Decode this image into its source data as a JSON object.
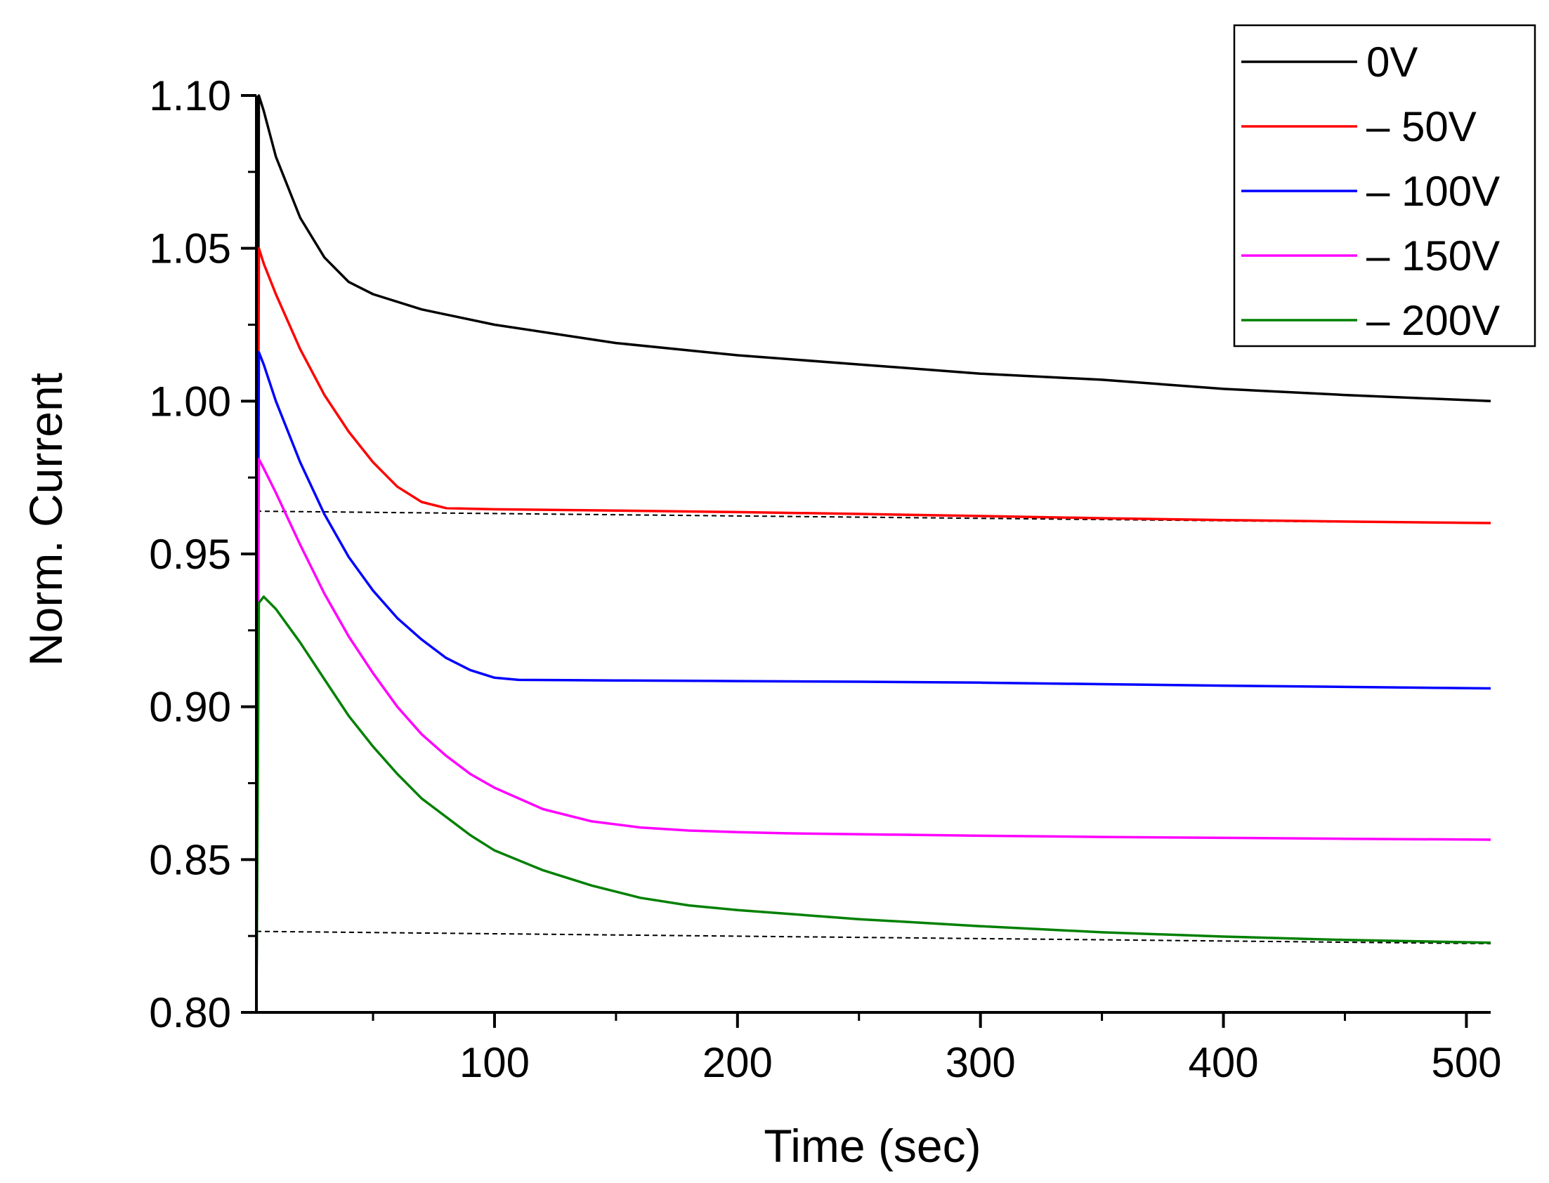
{
  "chart_data": {
    "type": "line",
    "title": "",
    "xlabel": "Time (sec)",
    "ylabel": "Norm. Current",
    "xlim": [
      2,
      510
    ],
    "ylim": [
      0.8,
      1.1
    ],
    "xticks": [
      100,
      200,
      300,
      400,
      500
    ],
    "xtick_labels": [
      "100",
      "200",
      "300",
      "400",
      "500"
    ],
    "yticks": [
      0.8,
      0.85,
      0.9,
      0.95,
      1.0,
      1.05,
      1.1
    ],
    "ytick_labels": [
      "0.80",
      "0.85",
      "0.90",
      "0.95",
      "1.00",
      "1.05",
      "1.10"
    ],
    "grid": false,
    "legend_position": "top-right",
    "series": [
      {
        "name": "0V",
        "color": "#000000",
        "x": [
          2,
          3,
          5,
          10,
          20,
          30,
          40,
          50,
          70,
          100,
          150,
          200,
          250,
          300,
          350,
          400,
          450,
          510
        ],
        "y": [
          0.8,
          1.1,
          1.095,
          1.08,
          1.06,
          1.047,
          1.039,
          1.035,
          1.03,
          1.025,
          1.019,
          1.015,
          1.012,
          1.009,
          1.007,
          1.004,
          1.002,
          1.0
        ]
      },
      {
        "name": "– 50V",
        "color": "#ff0000",
        "x": [
          2,
          3,
          5,
          10,
          20,
          30,
          40,
          50,
          60,
          70,
          80,
          90,
          100,
          150,
          200,
          250,
          300,
          350,
          400,
          450,
          510
        ],
        "y": [
          0.8,
          1.05,
          1.045,
          1.035,
          1.017,
          1.002,
          0.99,
          0.98,
          0.972,
          0.967,
          0.965,
          0.9648,
          0.9646,
          0.9642,
          0.9637,
          0.9631,
          0.9624,
          0.9617,
          0.9611,
          0.9606,
          0.9601
        ]
      },
      {
        "name": "– 100V",
        "color": "#0000ff",
        "x": [
          2,
          3,
          5,
          10,
          20,
          30,
          40,
          50,
          60,
          70,
          80,
          90,
          100,
          110,
          130,
          150,
          200,
          250,
          300,
          350,
          400,
          450,
          510
        ],
        "y": [
          0.8,
          1.016,
          1.012,
          1.0,
          0.98,
          0.963,
          0.949,
          0.938,
          0.929,
          0.922,
          0.916,
          0.912,
          0.9095,
          0.9088,
          0.9087,
          0.9086,
          0.9084,
          0.9082,
          0.9079,
          0.9074,
          0.9069,
          0.9065,
          0.906
        ]
      },
      {
        "name": "– 150V",
        "color": "#ff00ff",
        "x": [
          2,
          3,
          5,
          10,
          20,
          30,
          40,
          50,
          60,
          70,
          80,
          90,
          100,
          120,
          140,
          160,
          180,
          200,
          220,
          250,
          300,
          350,
          400,
          450,
          510
        ],
        "y": [
          0.8,
          0.981,
          0.978,
          0.97,
          0.953,
          0.937,
          0.923,
          0.911,
          0.9,
          0.891,
          0.884,
          0.878,
          0.8735,
          0.8665,
          0.8625,
          0.8605,
          0.8595,
          0.859,
          0.8586,
          0.8583,
          0.8578,
          0.8574,
          0.8571,
          0.8568,
          0.8565
        ]
      },
      {
        "name": "– 200V",
        "color": "#008000",
        "x": [
          2,
          3,
          5,
          10,
          20,
          30,
          40,
          50,
          60,
          70,
          80,
          90,
          100,
          120,
          140,
          160,
          180,
          200,
          250,
          300,
          350,
          400,
          450,
          510
        ],
        "y": [
          0.8,
          0.934,
          0.936,
          0.932,
          0.921,
          0.909,
          0.897,
          0.887,
          0.878,
          0.87,
          0.864,
          0.858,
          0.853,
          0.8465,
          0.8415,
          0.8375,
          0.835,
          0.8335,
          0.8305,
          0.8282,
          0.8262,
          0.8248,
          0.8237,
          0.8228
        ]
      }
    ],
    "reference_lines": [
      {
        "style": "dashed",
        "color": "#000000",
        "x": [
          2,
          510
        ],
        "y": [
          0.964,
          0.96
        ]
      },
      {
        "style": "dashed",
        "color": "#000000",
        "x": [
          2,
          510
        ],
        "y": [
          0.8265,
          0.8225
        ]
      }
    ]
  }
}
